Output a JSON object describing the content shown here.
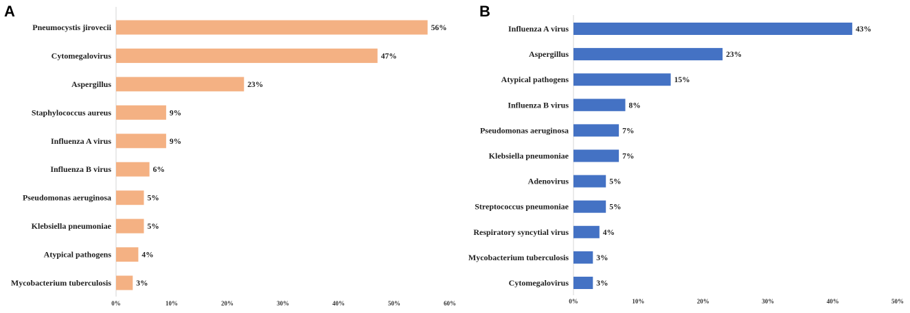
{
  "chart_data": [
    {
      "type": "bar",
      "orientation": "horizontal",
      "panel": "A",
      "color": "#f4b183",
      "categories": [
        "Pneumocystis jirovecii",
        "Cytomegalovirus",
        "Aspergillus",
        "Staphylococcus aureus",
        "Influenza A virus",
        "Influenza B virus",
        "Pseudomonas aeruginosa",
        "Klebsiella pneumoniae",
        "Atypical pathogens",
        "Mycobacterium tuberculosis"
      ],
      "values": [
        56,
        47,
        23,
        9,
        9,
        6,
        5,
        5,
        4,
        3
      ],
      "value_labels": [
        "56%",
        "47%",
        "23%",
        "9%",
        "9%",
        "6%",
        "5%",
        "5%",
        "4%",
        "3%"
      ],
      "xlim": [
        0,
        60
      ],
      "xticks": [
        "0%",
        "10%",
        "20%",
        "30%",
        "40%",
        "50%",
        "60%"
      ],
      "title": "",
      "xlabel": "",
      "ylabel": ""
    },
    {
      "type": "bar",
      "orientation": "horizontal",
      "panel": "B",
      "color": "#4472c4",
      "categories": [
        "Influenza A virus",
        "Aspergillus",
        "Atypical pathogens",
        "Influenza B virus",
        "Pseudomonas aeruginosa",
        "Klebsiella pneumoniae",
        "Adenovirus",
        "Streptococcus pneumoniae",
        "Respiratory syncytial virus",
        "Mycobacterium tuberculosis",
        "Cytomegalovirus"
      ],
      "values": [
        43,
        23,
        15,
        8,
        7,
        7,
        5,
        5,
        4,
        3,
        3
      ],
      "value_labels": [
        "43%",
        "23%",
        "15%",
        "8%",
        "7%",
        "7%",
        "5%",
        "5%",
        "4%",
        "3%",
        "3%"
      ],
      "xlim": [
        0,
        50
      ],
      "xticks": [
        "0%",
        "10%",
        "20%",
        "30%",
        "40%",
        "50%"
      ],
      "title": "",
      "xlabel": "",
      "ylabel": ""
    }
  ]
}
